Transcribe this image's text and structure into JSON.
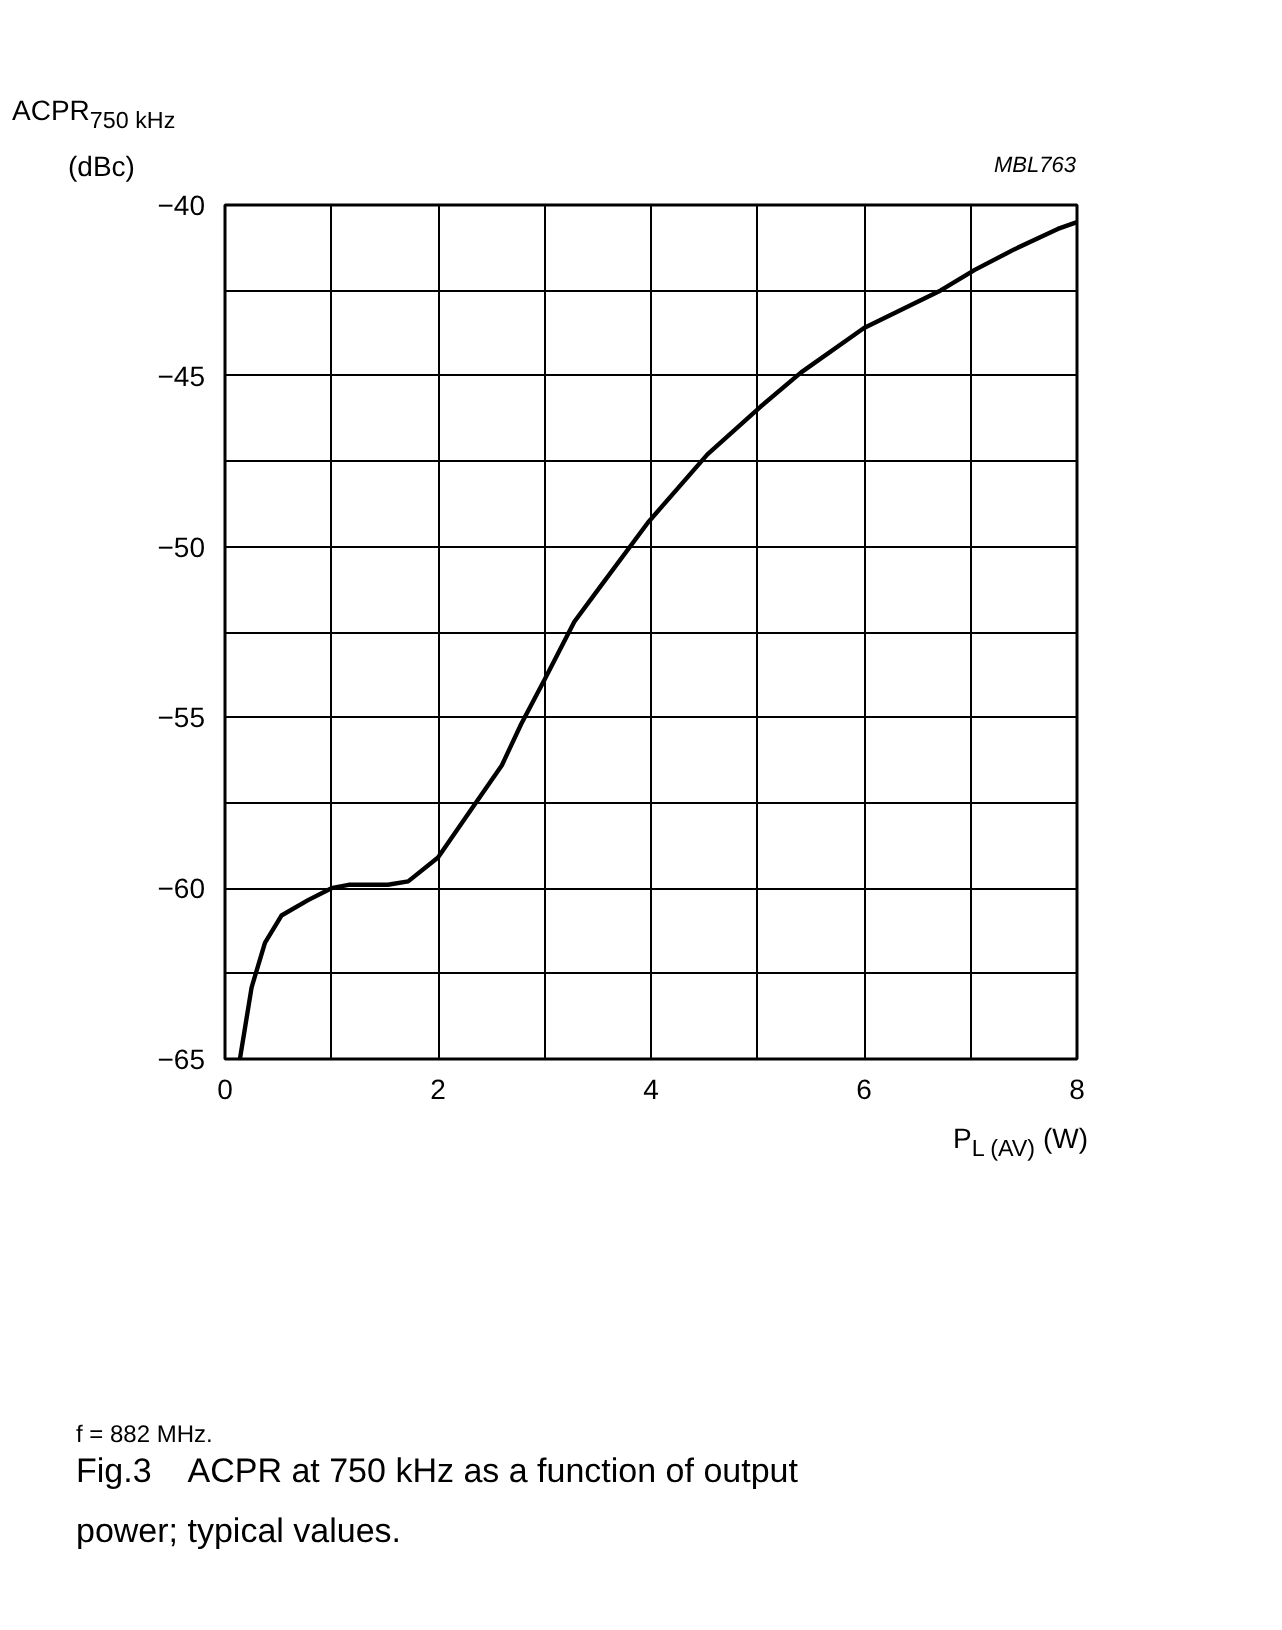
{
  "chart_data": {
    "type": "line",
    "title": "Fig.3    ACPR at 750 kHz as a function of output power; typical values.",
    "xlabel": "P$_{L (AV)}$ (W)",
    "ylabel": "ACPR$_{750 kHz}$ (dBc)",
    "annotations": [
      "MBL763",
      "f = 882 MHz."
    ],
    "xlim": [
      0,
      8
    ],
    "ylim": [
      -65,
      -40
    ],
    "xticks": [
      0,
      {
        "value": 1,
        "label": null
      },
      2,
      {
        "value": 3,
        "label": null
      },
      4,
      {
        "value": 5,
        "label": null
      },
      6,
      {
        "value": 7,
        "label": null
      },
      8
    ],
    "yticks": [
      -65,
      {
        "value": -62.5,
        "label": null
      },
      -60,
      {
        "value": -57.5,
        "label": null
      },
      -55,
      {
        "value": -52.5,
        "label": null
      },
      -50,
      {
        "value": -47.5,
        "label": null
      },
      -45,
      {
        "value": -42.5,
        "label": null
      },
      -40
    ],
    "grid": true,
    "series": [
      {
        "color": "#000000",
        "x": [
          0.14,
          0.25,
          0.375,
          0.53,
          0.78,
          1.0,
          1.16,
          1.53,
          1.72,
          2.0,
          2.31,
          2.6,
          2.78,
          3.0,
          3.28,
          3.47,
          3.97,
          4.53,
          5.03,
          5.41,
          6.0,
          6.72,
          7.04,
          7.41,
          7.82,
          8.0
        ],
        "values": [
          -65,
          -62.9,
          -61.6,
          -60.8,
          -60.35,
          -60.0,
          -59.9,
          -59.9,
          -59.8,
          -59.1,
          -57.7,
          -56.4,
          -55.2,
          -53.9,
          -52.2,
          -51.4,
          -49.3,
          -47.3,
          -45.9,
          -44.9,
          -43.6,
          -42.5,
          -41.9,
          -41.3,
          -40.7,
          -40.5
        ]
      }
    ]
  }
}
